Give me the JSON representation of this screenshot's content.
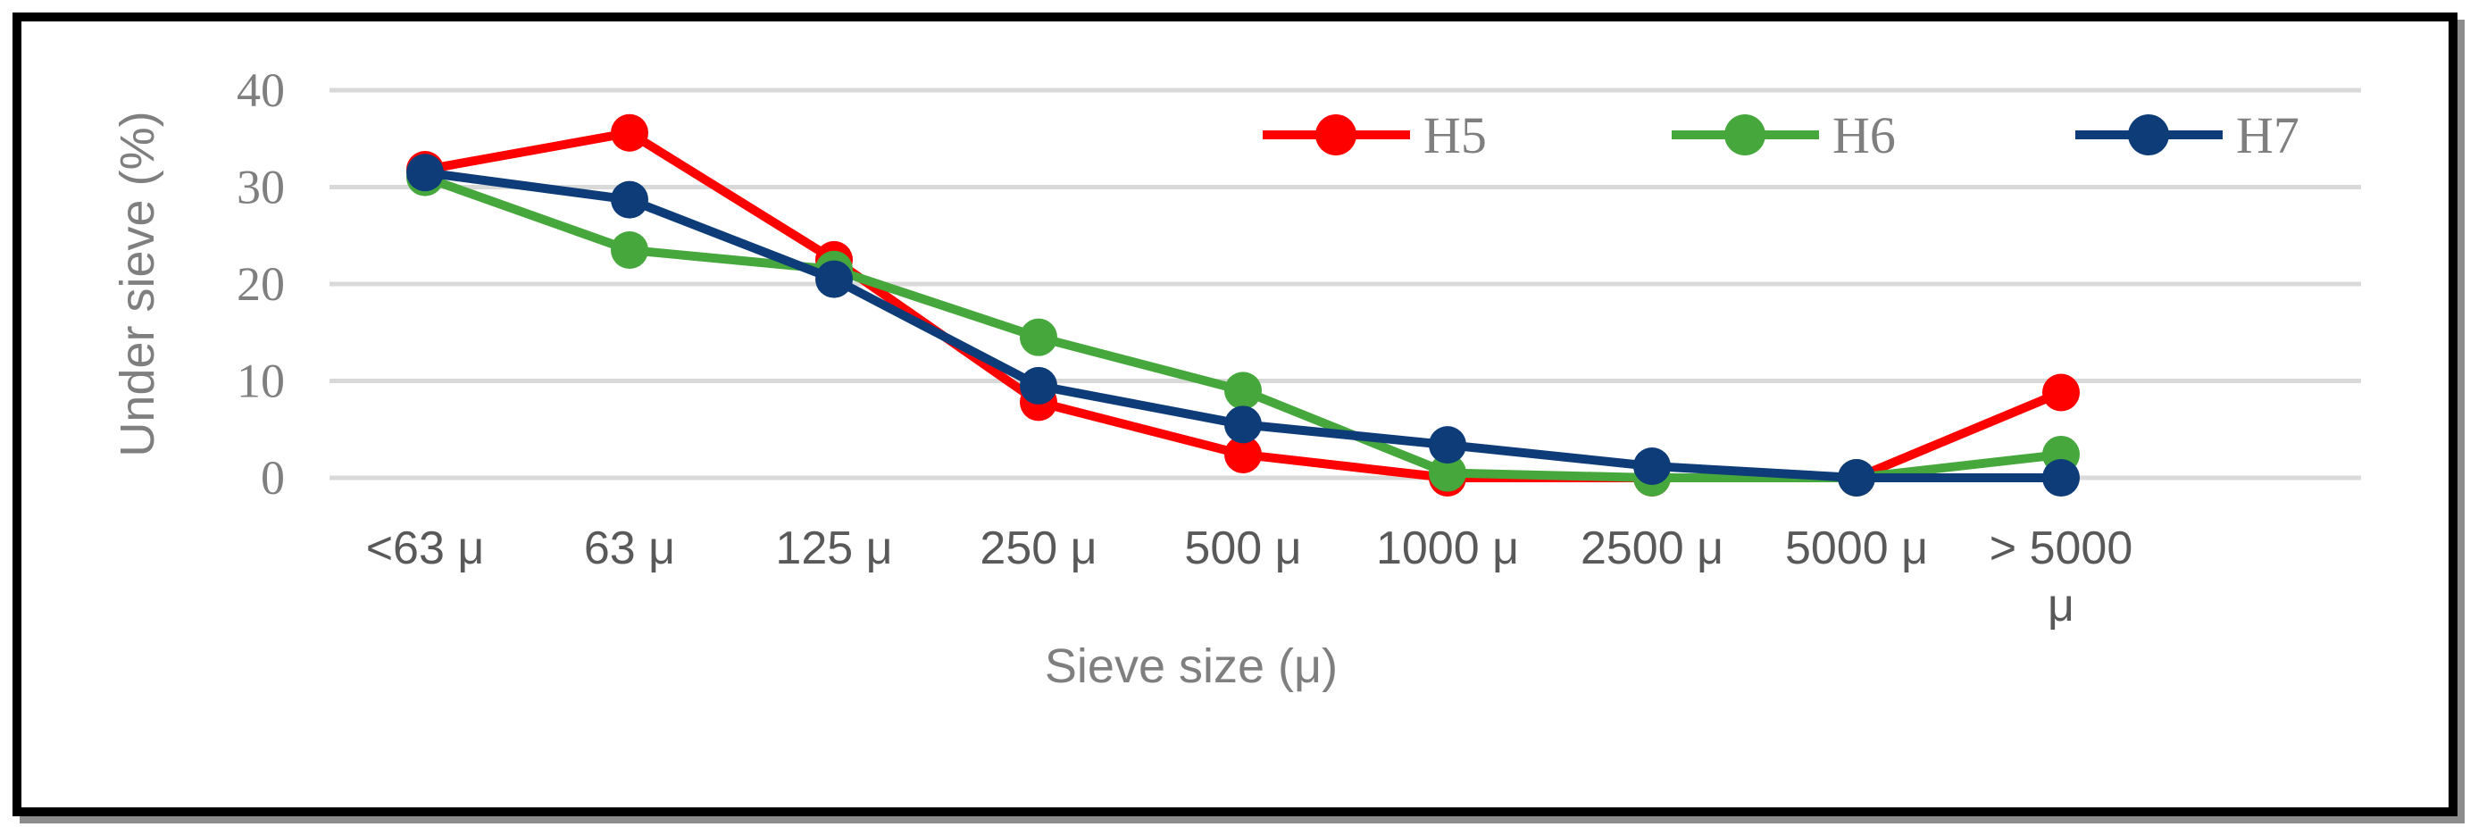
{
  "chart_data": {
    "type": "line",
    "categories": [
      "<63 μ",
      "63 μ",
      "125 μ",
      "250 μ",
      "500 μ",
      "1000 μ",
      "2500 μ",
      "5000 μ",
      "> 5000 μ"
    ],
    "series": [
      {
        "name": "H5",
        "color": "#ff0000",
        "values": [
          31.8,
          35.6,
          22.5,
          7.8,
          2.4,
          0.0,
          0.0,
          0.0,
          8.8
        ]
      },
      {
        "name": "H6",
        "color": "#46a83c",
        "values": [
          31.0,
          23.5,
          21.5,
          14.5,
          9.0,
          0.5,
          0.0,
          0.0,
          2.4
        ]
      },
      {
        "name": "H7",
        "color": "#0d3c78",
        "values": [
          31.5,
          28.7,
          20.5,
          9.5,
          5.5,
          3.4,
          1.2,
          0.0,
          0.0
        ]
      }
    ],
    "y_ticks": [
      "0",
      "10",
      "20",
      "30",
      "40"
    ],
    "ylim": [
      0,
      40
    ],
    "xlabel": "Sieve size (μ)",
    "ylabel": "Under sieve (%)",
    "grid": "horizontal",
    "legend": "top-right"
  }
}
